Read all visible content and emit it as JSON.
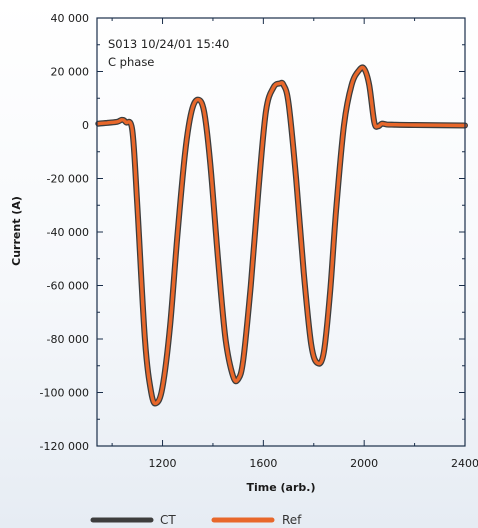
{
  "chart_data": {
    "type": "line",
    "title": "",
    "xlabel": "Time (arb.)",
    "ylabel": "Current (A)",
    "xlim": [
      940,
      2400
    ],
    "ylim": [
      -120000,
      40000
    ],
    "x_ticks": [
      1200,
      1600,
      2000,
      2400
    ],
    "y_ticks": [
      40000,
      20000,
      0,
      -20000,
      -40000,
      -60000,
      -80000,
      -100000,
      -120000
    ],
    "x_tick_labels": [
      "1200",
      "1600",
      "2000",
      "2400"
    ],
    "y_tick_labels": [
      "40 000",
      "20 000",
      "0",
      "-20 000",
      "-40 000",
      "-60 000",
      "-80 000",
      "-100 000",
      "-120 000"
    ],
    "annotations": [
      "S013 10/24/01 15:40",
      "C phase"
    ],
    "grid": false,
    "legend_position": "bottom",
    "series": [
      {
        "name": "CT",
        "color": "#3d3d3d",
        "x": [
          945,
          980,
          1020,
          1040,
          1055,
          1080,
          1100,
          1130,
          1155,
          1175,
          1200,
          1230,
          1260,
          1290,
          1315,
          1340,
          1365,
          1390,
          1420,
          1450,
          1480,
          1500,
          1520,
          1550,
          1580,
          1610,
          1640,
          1665,
          1680,
          1700,
          1730,
          1760,
          1790,
          1815,
          1840,
          1865,
          1890,
          1920,
          1950,
          1980,
          2000,
          2020,
          2040,
          2055,
          2070,
          2090,
          2120,
          2200,
          2400
        ],
        "y": [
          500,
          800,
          1200,
          2000,
          1000,
          -2000,
          -30000,
          -80000,
          -100000,
          -104000,
          -98000,
          -75000,
          -40000,
          -10000,
          5000,
          9500,
          5000,
          -15000,
          -50000,
          -80000,
          -94000,
          -95000,
          -88000,
          -60000,
          -25000,
          5000,
          14000,
          15500,
          15000,
          8000,
          -20000,
          -55000,
          -82000,
          -89000,
          -85000,
          -62000,
          -30000,
          0,
          15000,
          20500,
          21000,
          15000,
          1000,
          -500,
          500,
          200,
          100,
          0,
          -200
        ]
      },
      {
        "name": "Ref",
        "color": "#e8672a",
        "x": [
          945,
          980,
          1020,
          1040,
          1055,
          1080,
          1100,
          1130,
          1155,
          1175,
          1200,
          1230,
          1260,
          1290,
          1315,
          1340,
          1365,
          1390,
          1420,
          1450,
          1480,
          1500,
          1520,
          1550,
          1580,
          1610,
          1640,
          1665,
          1680,
          1700,
          1730,
          1760,
          1790,
          1815,
          1840,
          1865,
          1890,
          1920,
          1950,
          1980,
          2000,
          2020,
          2040,
          2055,
          2070,
          2090,
          2120,
          2200,
          2400
        ],
        "y": [
          500,
          800,
          1200,
          2000,
          1000,
          -2000,
          -30000,
          -80000,
          -100000,
          -104000,
          -98000,
          -75000,
          -40000,
          -10000,
          5000,
          9500,
          5000,
          -15000,
          -50000,
          -80000,
          -94000,
          -95000,
          -88000,
          -60000,
          -25000,
          5000,
          14000,
          15500,
          15000,
          8000,
          -20000,
          -55000,
          -82000,
          -89000,
          -85000,
          -62000,
          -30000,
          0,
          15000,
          20500,
          21000,
          15000,
          1000,
          -500,
          500,
          200,
          100,
          0,
          -200
        ]
      }
    ]
  }
}
